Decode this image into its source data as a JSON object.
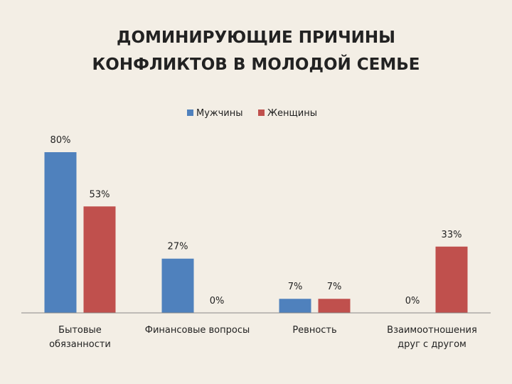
{
  "title": {
    "line1": "ДОМИНИРУЮЩИЕ ПРИЧИНЫ",
    "line2": "КОНФЛИКТОВ В МОЛОДОЙ СЕМЬЕ"
  },
  "chart_data": {
    "type": "bar",
    "title": "ДОМИНИРУЮЩИЕ ПРИЧИНЫ КОНФЛИКТОВ В МОЛОДОЙ СЕМЬЕ",
    "categories": [
      [
        "Бытовые",
        "обязанности"
      ],
      [
        "Финансовые вопросы"
      ],
      [
        "Ревность"
      ],
      [
        "Взаимоотношения",
        "друг с другом"
      ]
    ],
    "series": [
      {
        "name": "Мужчины",
        "color": "#4f81bd",
        "values": [
          80,
          27,
          7,
          0
        ],
        "labels": [
          "80%",
          "27%",
          "7%",
          "0%"
        ]
      },
      {
        "name": "Женщины",
        "color": "#c0504d",
        "values": [
          53,
          0,
          7,
          33
        ],
        "labels": [
          "53%",
          "0%",
          "7%",
          "33%"
        ]
      }
    ],
    "ylim": [
      0,
      80
    ],
    "grid": false,
    "legend_position": "top",
    "xlabel": "",
    "ylabel": ""
  }
}
